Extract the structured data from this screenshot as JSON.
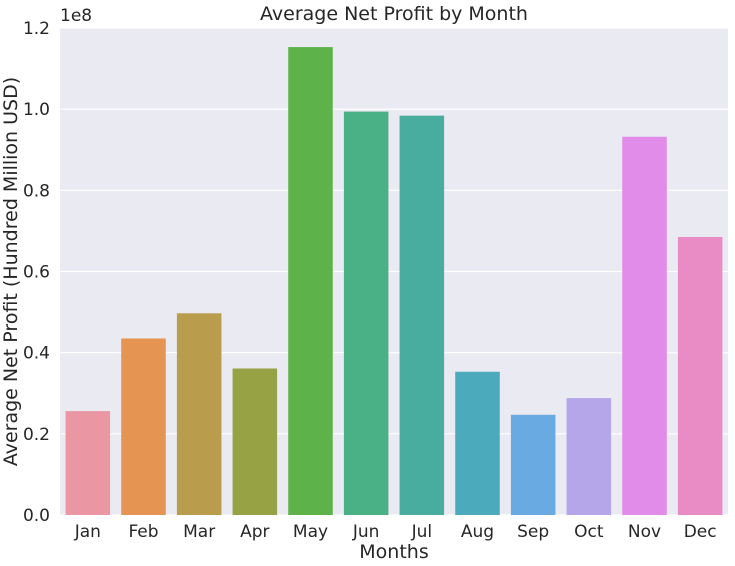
{
  "chart_data": {
    "type": "bar",
    "title": "Average Net Profit by Month",
    "xlabel": "Months",
    "ylabel": "Average Net Profit (Hundred Million USD)",
    "y_offset_label": "1e8",
    "ylim": [
      0,
      1.2
    ],
    "yticks": [
      "0.0",
      "0.2",
      "0.4",
      "0.6",
      "0.8",
      "1.0",
      "1.2"
    ],
    "grid": true,
    "categories": [
      "Jan",
      "Feb",
      "Mar",
      "Apr",
      "May",
      "Jun",
      "Jul",
      "Aug",
      "Sep",
      "Oct",
      "Nov",
      "Dec"
    ],
    "values": [
      0.256,
      0.435,
      0.497,
      0.361,
      1.153,
      0.994,
      0.984,
      0.353,
      0.247,
      0.288,
      0.932,
      0.685
    ],
    "colors": [
      "#ea96a3",
      "#e59452",
      "#b99c4c",
      "#97a245",
      "#5db349",
      "#4ab086",
      "#48ac9e",
      "#4baabb",
      "#6aaae2",
      "#b4a6e9",
      "#e28ce9",
      "#e98cc6"
    ]
  }
}
